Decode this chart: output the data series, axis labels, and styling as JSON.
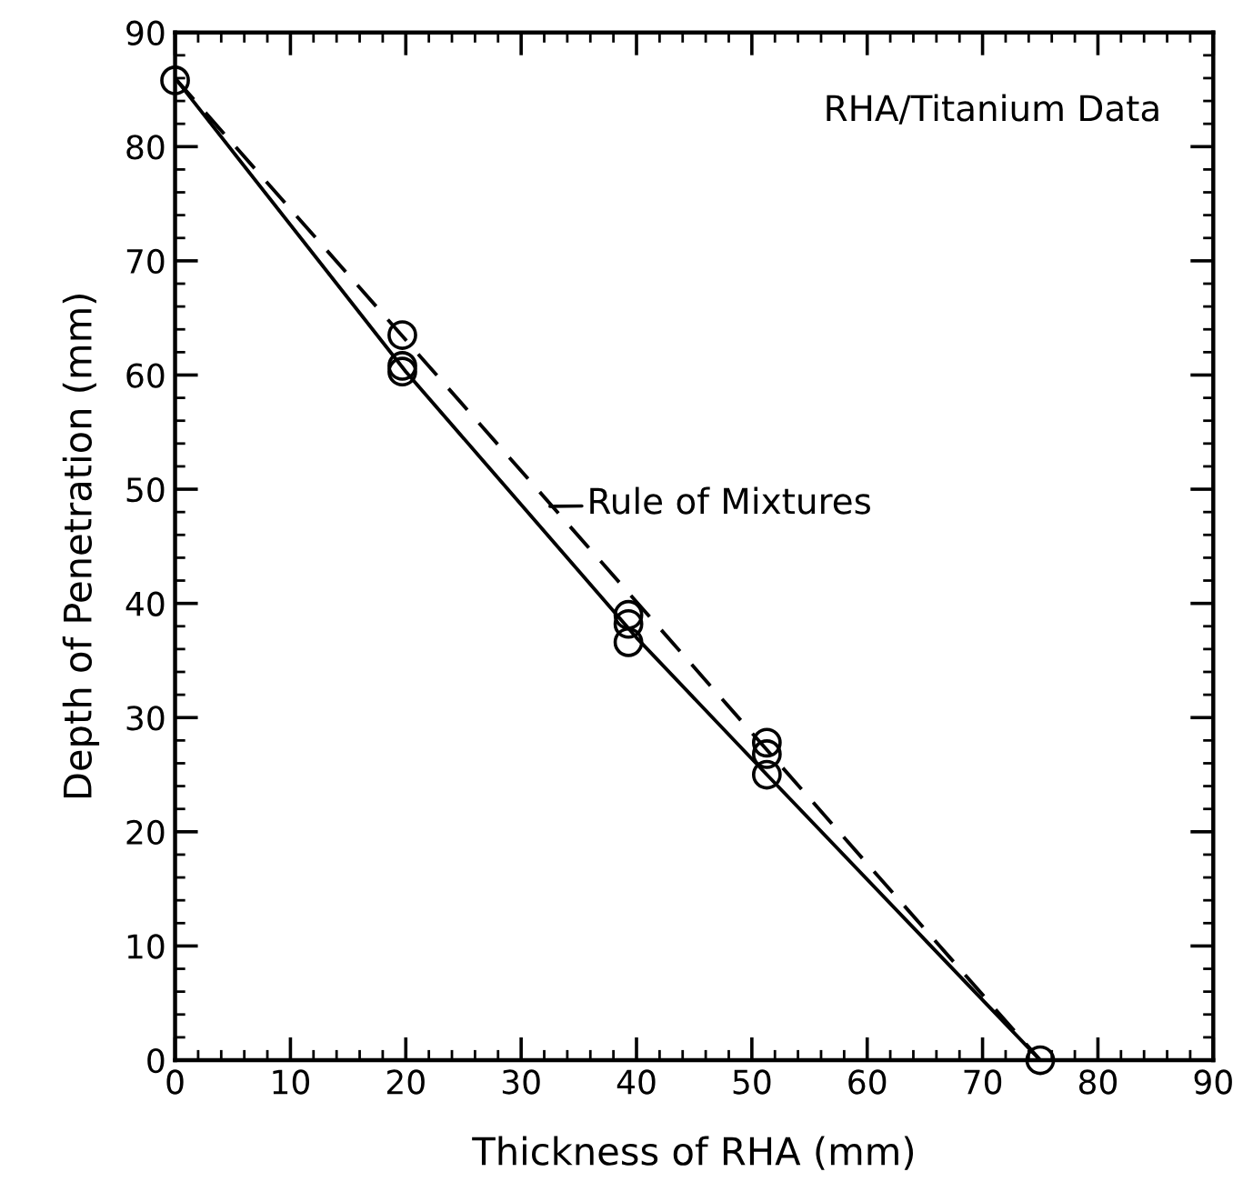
{
  "chart_data": {
    "type": "scatter",
    "title": "RHA/Titanium Data",
    "xlabel": "Thickness of RHA (mm)",
    "ylabel": "Depth of Penetration (mm)",
    "series": [
      {
        "color": "#000000",
        "marker": "circle",
        "x": [
          0,
          19.7,
          19.7,
          19.7,
          39.3,
          39.3,
          39.3,
          51.3,
          51.3,
          51.3,
          75
        ],
        "values": [
          85.8,
          63.5,
          60.8,
          60.3,
          39,
          38.2,
          36.6,
          27.8,
          26.8,
          25,
          0
        ]
      },
      {
        "type": "line",
        "color": "#000000",
        "line_style": "dashed",
        "marker": "none",
        "x": [
          0,
          75
        ],
        "values": [
          86,
          0
        ]
      },
      {
        "type": "line",
        "color": "#000000",
        "line_style": "solid",
        "marker": "none",
        "x": [
          0,
          20,
          40,
          51.3,
          75
        ],
        "values": [
          86,
          60.3,
          37,
          25,
          0
        ]
      }
    ],
    "annotations": [
      {
        "text": "Rule of Mixtures",
        "x": 32.5,
        "y": 48.5
      }
    ],
    "xlim": [
      0,
      90
    ],
    "ylim": [
      0,
      90
    ],
    "xticks": [
      0,
      10,
      20,
      30,
      40,
      50,
      60,
      70,
      80,
      90,
      {
        "value": 2,
        "label": null
      },
      {
        "value": 4,
        "label": null
      },
      {
        "value": 6,
        "label": null
      },
      {
        "value": 8,
        "label": null
      },
      {
        "value": 12,
        "label": null
      },
      {
        "value": 14,
        "label": null
      },
      {
        "value": 16,
        "label": null
      },
      {
        "value": 18,
        "label": null
      },
      {
        "value": 22,
        "label": null
      },
      {
        "value": 24,
        "label": null
      },
      {
        "value": 26,
        "label": null
      },
      {
        "value": 28,
        "label": null
      },
      {
        "value": 32,
        "label": null
      },
      {
        "value": 34,
        "label": null
      },
      {
        "value": 36,
        "label": null
      },
      {
        "value": 38,
        "label": null
      },
      {
        "value": 42,
        "label": null
      },
      {
        "value": 44,
        "label": null
      },
      {
        "value": 46,
        "label": null
      },
      {
        "value": 48,
        "label": null
      },
      {
        "value": 52,
        "label": null
      },
      {
        "value": 54,
        "label": null
      },
      {
        "value": 56,
        "label": null
      },
      {
        "value": 58,
        "label": null
      },
      {
        "value": 62,
        "label": null
      },
      {
        "value": 64,
        "label": null
      },
      {
        "value": 66,
        "label": null
      },
      {
        "value": 68,
        "label": null
      },
      {
        "value": 72,
        "label": null
      },
      {
        "value": 74,
        "label": null
      },
      {
        "value": 76,
        "label": null
      },
      {
        "value": 78,
        "label": null
      },
      {
        "value": 82,
        "label": null
      },
      {
        "value": 84,
        "label": null
      },
      {
        "value": 86,
        "label": null
      },
      {
        "value": 88,
        "label": null
      }
    ],
    "yticks": [
      0,
      10,
      20,
      30,
      40,
      50,
      60,
      70,
      80,
      90,
      {
        "value": 2,
        "label": null
      },
      {
        "value": 4,
        "label": null
      },
      {
        "value": 6,
        "label": null
      },
      {
        "value": 8,
        "label": null
      },
      {
        "value": 12,
        "label": null
      },
      {
        "value": 14,
        "label": null
      },
      {
        "value": 16,
        "label": null
      },
      {
        "value": 18,
        "label": null
      },
      {
        "value": 22,
        "label": null
      },
      {
        "value": 24,
        "label": null
      },
      {
        "value": 26,
        "label": null
      },
      {
        "value": 28,
        "label": null
      },
      {
        "value": 32,
        "label": null
      },
      {
        "value": 34,
        "label": null
      },
      {
        "value": 36,
        "label": null
      },
      {
        "value": 38,
        "label": null
      },
      {
        "value": 42,
        "label": null
      },
      {
        "value": 44,
        "label": null
      },
      {
        "value": 46,
        "label": null
      },
      {
        "value": 48,
        "label": null
      },
      {
        "value": 52,
        "label": null
      },
      {
        "value": 54,
        "label": null
      },
      {
        "value": 56,
        "label": null
      },
      {
        "value": 58,
        "label": null
      },
      {
        "value": 62,
        "label": null
      },
      {
        "value": 64,
        "label": null
      },
      {
        "value": 66,
        "label": null
      },
      {
        "value": 68,
        "label": null
      },
      {
        "value": 72,
        "label": null
      },
      {
        "value": 74,
        "label": null
      },
      {
        "value": 76,
        "label": null
      },
      {
        "value": 78,
        "label": null
      },
      {
        "value": 82,
        "label": null
      },
      {
        "value": 84,
        "label": null
      },
      {
        "value": 86,
        "label": null
      },
      {
        "value": 88,
        "label": null
      }
    ],
    "grid": false,
    "legend": false
  }
}
